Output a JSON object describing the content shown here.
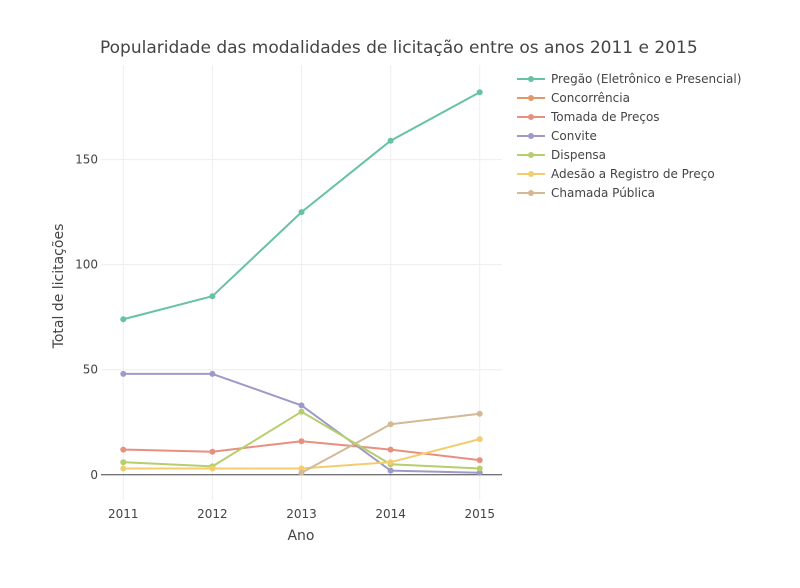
{
  "chart_data": {
    "type": "line",
    "title": "Popularidade das modalidades de licitação entre os anos 2011 e 2015",
    "xlabel": "Ano",
    "ylabel": "Total de licitações",
    "x": [
      2011,
      2012,
      2013,
      2014,
      2015
    ],
    "x_tick_labels": [
      "2011",
      "2012",
      "2013",
      "2014",
      "2015"
    ],
    "yticks": [
      0,
      50,
      100,
      150
    ],
    "y_tick_labels": [
      "0",
      "50",
      "100",
      "150"
    ],
    "ylim": [
      -12,
      195
    ],
    "grid": true,
    "legend_position": "right",
    "series": [
      {
        "name": "Pregão (Eletrônico e Presencial)",
        "color": "#66c2a5",
        "values": [
          74,
          85,
          125,
          159,
          182
        ]
      },
      {
        "name": "Concorrência",
        "color": "#e09a6a",
        "values": [
          null,
          null,
          null,
          null,
          null
        ]
      },
      {
        "name": "Tomada de Preços",
        "color": "#e8907f",
        "values": [
          12,
          11,
          16,
          12,
          7
        ]
      },
      {
        "name": "Convite",
        "color": "#9e9ac8",
        "values": [
          48,
          48,
          33,
          2,
          1
        ]
      },
      {
        "name": "Dispensa",
        "color": "#b5cf6b",
        "values": [
          6,
          4,
          30,
          5,
          3
        ]
      },
      {
        "name": "Adesão a Registro de Preço",
        "color": "#f2cd6e",
        "values": [
          3,
          3,
          3,
          6,
          17
        ]
      },
      {
        "name": "Chamada Pública",
        "color": "#d4b996",
        "values": [
          null,
          null,
          1,
          24,
          29
        ]
      }
    ]
  }
}
